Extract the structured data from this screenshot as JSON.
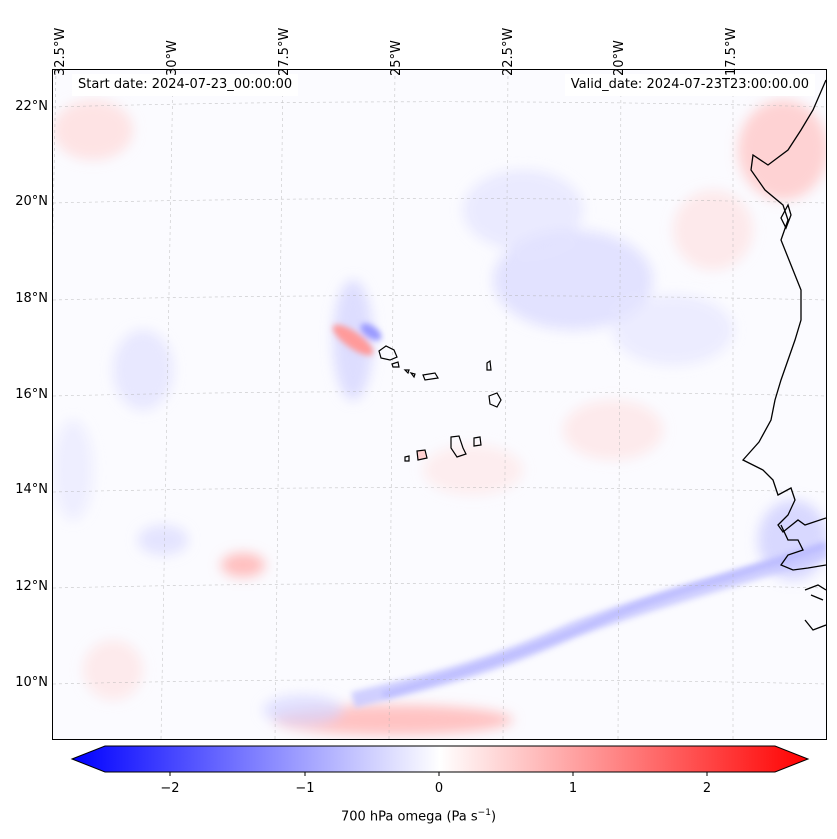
{
  "header": {
    "start_date": "Start date: 2024-07-23_00:00:00",
    "valid_date": "Valid_date: 2024-07-23T23:00:00.00"
  },
  "longitude_ticks": [
    "32.5°W",
    "30°W",
    "27.5°W",
    "25°W",
    "22.5°W",
    "20°W",
    "17.5°W"
  ],
  "latitude_ticks": [
    "22°N",
    "20°N",
    "18°N",
    "16°N",
    "14°N",
    "12°N",
    "10°N"
  ],
  "colorbar": {
    "ticks": [
      "−2",
      "−1",
      "0",
      "1",
      "2"
    ],
    "label_main": "700 hPa omega (Pa s",
    "label_sup": "−1",
    "label_end": ")",
    "colors": {
      "min": "#0000ff",
      "mid": "#ffffff",
      "max": "#ff0000"
    }
  }
}
